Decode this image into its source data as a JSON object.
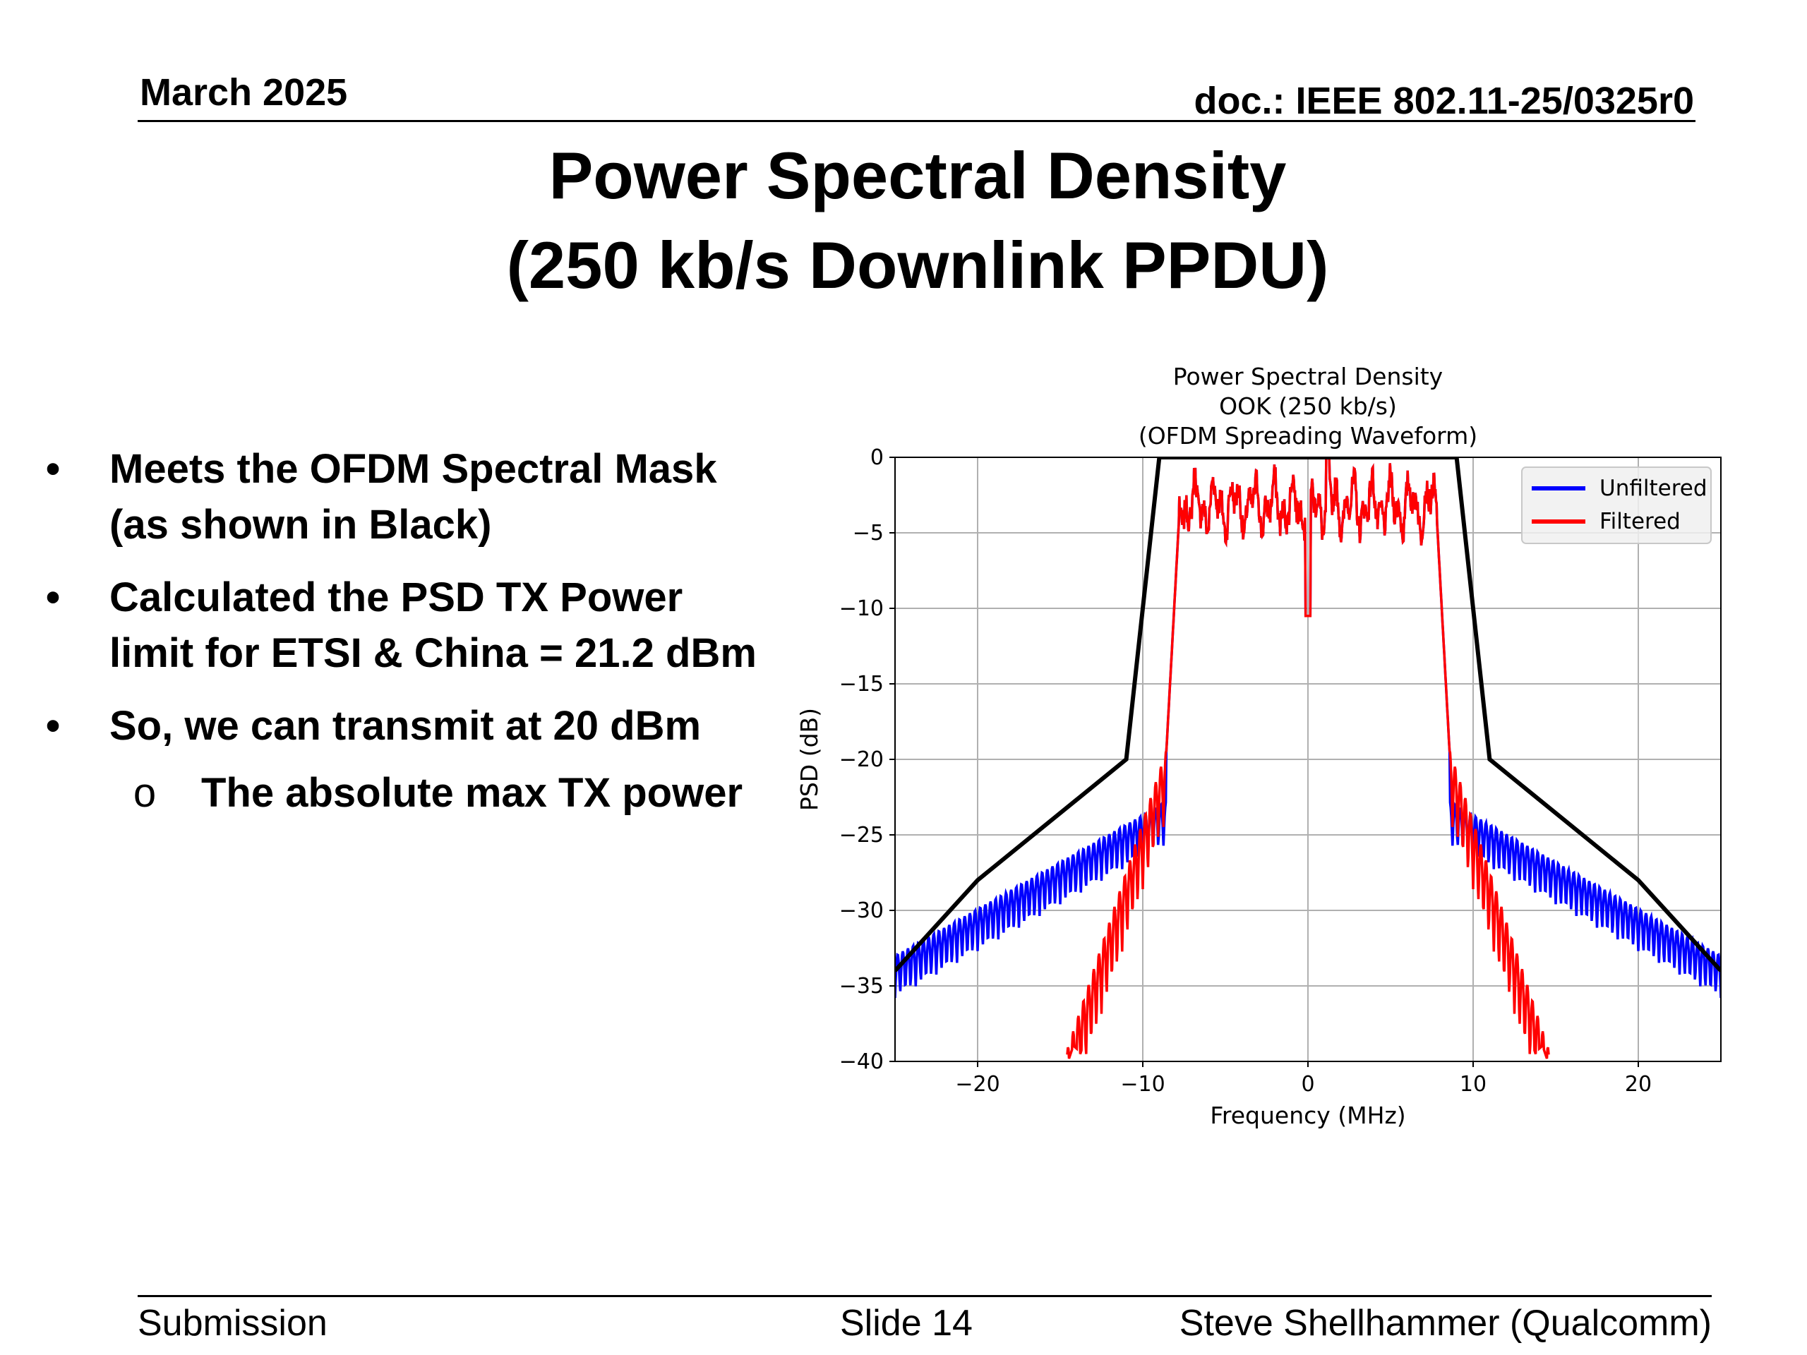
{
  "header": {
    "date": "March 2025",
    "doc": "doc.: IEEE 802.11-25/0325r0"
  },
  "title": {
    "line1": "Power Spectral Density",
    "line2": "(250 kb/s Downlink PPDU)"
  },
  "bullets": [
    {
      "marker": "•",
      "lines": [
        "Meets the OFDM Spectral Mask",
        "(as shown in Black)"
      ]
    },
    {
      "marker": "•",
      "lines": [
        "Calculated the PSD TX Power",
        "limit for ETSI & China = 21.2 dBm"
      ]
    },
    {
      "marker": "•",
      "lines": [
        "So, we can transmit at 20 dBm"
      ]
    },
    {
      "marker": "o",
      "sub": true,
      "lines": [
        "The absolute max TX power"
      ]
    }
  ],
  "footer": {
    "left": "Submission",
    "center": "Slide 14",
    "right": "Steve Shellhammer (Qualcomm)"
  },
  "chart_data": {
    "type": "line",
    "title": [
      "Power Spectral Density",
      "OOK (250 kb/s)",
      "(OFDM Spreading Waveform)"
    ],
    "xlabel": "Frequency (MHz)",
    "ylabel": "PSD (dB)",
    "xlim": [
      -25,
      25
    ],
    "ylim": [
      -40,
      0
    ],
    "xticks": [
      -20,
      -10,
      0,
      10,
      20
    ],
    "xtick_labels": [
      "−20",
      "−10",
      "0",
      "10",
      "20"
    ],
    "yticks": [
      0,
      -5,
      -10,
      -15,
      -20,
      -25,
      -30,
      -35,
      -40
    ],
    "ytick_labels": [
      "0",
      "−5",
      "−10",
      "−15",
      "−20",
      "−25",
      "−30",
      "−35",
      "−40"
    ],
    "grid": true,
    "legend_position": "top-right",
    "series": [
      {
        "name": "Unfiltered",
        "color": "#0000ff"
      },
      {
        "name": "Filtered",
        "color": "#ff0000"
      },
      {
        "color": "#000000",
        "x": [
          -25,
          -20,
          -11,
          -9,
          9,
          11,
          20,
          25
        ],
        "y": [
          -34,
          -28,
          -20,
          0,
          0,
          -20,
          -28,
          -34
        ]
      }
    ]
  }
}
